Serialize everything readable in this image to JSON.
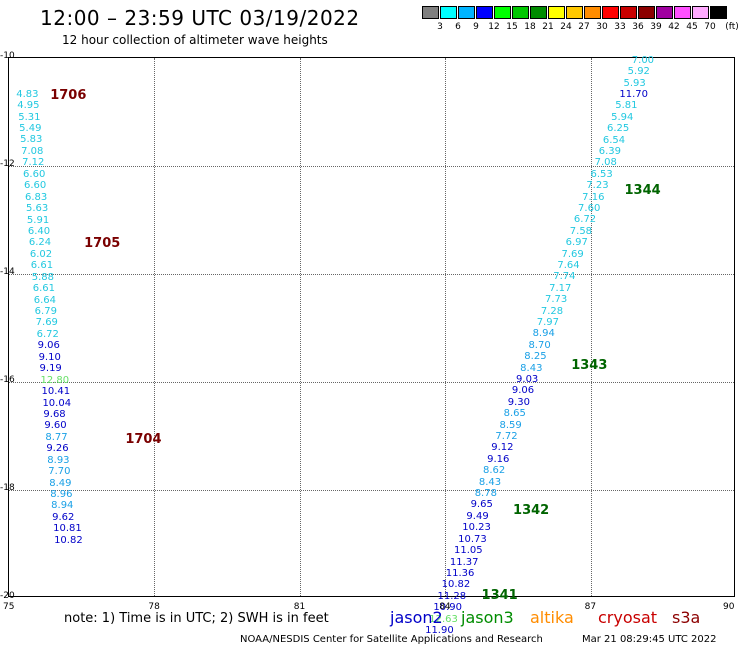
{
  "header": {
    "title": "12:00 – 23:59 UTC 03/19/2022",
    "subtitle": "12 hour collection of altimeter wave heights"
  },
  "colorbar": {
    "unit": "(ft)",
    "swatches": [
      {
        "color": "#7f7f7f",
        "label": "3"
      },
      {
        "color": "#00ffff",
        "label": "6"
      },
      {
        "color": "#00b4ff",
        "label": "9"
      },
      {
        "color": "#0000ff",
        "label": "12"
      },
      {
        "color": "#00ff00",
        "label": "15"
      },
      {
        "color": "#00c800",
        "label": "18"
      },
      {
        "color": "#008c00",
        "label": "21"
      },
      {
        "color": "#ffff00",
        "label": "24"
      },
      {
        "color": "#ffc800",
        "label": "27"
      },
      {
        "color": "#ff8c00",
        "label": "30"
      },
      {
        "color": "#ff0000",
        "label": "33"
      },
      {
        "color": "#c80000",
        "label": "36"
      },
      {
        "color": "#8c0000",
        "label": "39"
      },
      {
        "color": "#a000a0",
        "label": "42"
      },
      {
        "color": "#ff50ff",
        "label": "45"
      },
      {
        "color": "#ffaaff",
        "label": "70"
      },
      {
        "color": "#000000",
        "label": ""
      }
    ]
  },
  "map": {
    "lon_range": [
      75,
      90
    ],
    "lat_range": [
      -20,
      -10
    ],
    "lon_ticks": [
      "75",
      "78",
      "81",
      "84",
      "87",
      "90"
    ],
    "lat_ticks": [
      "-10",
      "-12",
      "-14",
      "-16",
      "-18",
      "-20"
    ],
    "grid": true
  },
  "passes": [
    {
      "label": "1706",
      "color": "#7a0000",
      "lon": 75.85,
      "lat": -10.68
    },
    {
      "label": "1705",
      "color": "#7a0000",
      "lon": 76.55,
      "lat": -13.42
    },
    {
      "label": "1704",
      "color": "#7a0000",
      "lon": 77.4,
      "lat": -17.05
    },
    {
      "label": "1344",
      "color": "#006400",
      "lon": 87.7,
      "lat": -12.45
    },
    {
      "label": "1343",
      "color": "#006400",
      "lon": 86.6,
      "lat": -15.68
    },
    {
      "label": "1342",
      "color": "#006400",
      "lon": 85.4,
      "lat": -18.37
    },
    {
      "label": "1341",
      "color": "#006400",
      "lon": 84.75,
      "lat": -19.95
    }
  ],
  "tracks": {
    "west": {
      "start_lon": 75.15,
      "lon_step": 0.02,
      "start_lat": -10.68,
      "lat_step": -0.2118,
      "obs": [
        {
          "v": "4.83",
          "c": "#22c8e0"
        },
        {
          "v": "4.95",
          "c": "#22c8e0"
        },
        {
          "v": "5.31",
          "c": "#22c8e0"
        },
        {
          "v": "5.49",
          "c": "#22c8e0"
        },
        {
          "v": "5.83",
          "c": "#22c8e0"
        },
        {
          "v": "7.08",
          "c": "#22c8e0"
        },
        {
          "v": "7.12",
          "c": "#22c8e0"
        },
        {
          "v": "6.60",
          "c": "#22c8e0"
        },
        {
          "v": "6.60",
          "c": "#22c8e0"
        },
        {
          "v": "6.83",
          "c": "#22c8e0"
        },
        {
          "v": "5.63",
          "c": "#22c8e0"
        },
        {
          "v": "5.91",
          "c": "#22c8e0"
        },
        {
          "v": "6.40",
          "c": "#22c8e0"
        },
        {
          "v": "6.24",
          "c": "#22c8e0"
        },
        {
          "v": "6.02",
          "c": "#22c8e0"
        },
        {
          "v": "6.61",
          "c": "#22c8e0"
        },
        {
          "v": "5.88",
          "c": "#22c8e0"
        },
        {
          "v": "6.61",
          "c": "#22c8e0"
        },
        {
          "v": "6.64",
          "c": "#22c8e0"
        },
        {
          "v": "6.79",
          "c": "#22c8e0"
        },
        {
          "v": "7.69",
          "c": "#22c8e0"
        },
        {
          "v": "6.72",
          "c": "#22c8e0"
        },
        {
          "v": "9.06",
          "c": "#0000c8"
        },
        {
          "v": "9.10",
          "c": "#0000c8"
        },
        {
          "v": "9.19",
          "c": "#0000c8"
        },
        {
          "v": "12.80",
          "c": "#66e066"
        },
        {
          "v": "10.41",
          "c": "#0000c8"
        },
        {
          "v": "10.04",
          "c": "#0000c8"
        },
        {
          "v": "9.68",
          "c": "#0000c8"
        },
        {
          "v": "9.60",
          "c": "#0000c8"
        },
        {
          "v": "8.77",
          "c": "#1aa0e6"
        },
        {
          "v": "9.26",
          "c": "#0000c8"
        },
        {
          "v": "8.93",
          "c": "#1aa0e6"
        },
        {
          "v": "7.70",
          "c": "#1aa0e6"
        },
        {
          "v": "8.49",
          "c": "#1aa0e6"
        },
        {
          "v": "8.96",
          "c": "#1aa0e6"
        },
        {
          "v": "8.94",
          "c": "#1aa0e6"
        },
        {
          "v": "9.62",
          "c": "#0000c8"
        },
        {
          "v": "10.81",
          "c": "#0000c8"
        },
        {
          "v": "10.82",
          "c": "#0000c8"
        }
      ]
    },
    "east": {
      "start_lon": 87.85,
      "lon_step": -0.0853,
      "start_lat": -10.05,
      "lat_step": -0.2112,
      "obs": [
        {
          "v": "7.00",
          "c": "#22c8e0"
        },
        {
          "v": "5.92",
          "c": "#22c8e0"
        },
        {
          "v": "5.93",
          "c": "#22c8e0"
        },
        {
          "v": "11.70",
          "c": "#0000c8"
        },
        {
          "v": "5.81",
          "c": "#22c8e0"
        },
        {
          "v": "5.94",
          "c": "#22c8e0"
        },
        {
          "v": "6.25",
          "c": "#22c8e0"
        },
        {
          "v": "6.54",
          "c": "#22c8e0"
        },
        {
          "v": "6.39",
          "c": "#22c8e0"
        },
        {
          "v": "7.08",
          "c": "#22c8e0"
        },
        {
          "v": "6.53",
          "c": "#22c8e0"
        },
        {
          "v": "7.23",
          "c": "#22c8e0"
        },
        {
          "v": "7.16",
          "c": "#22c8e0"
        },
        {
          "v": "7.60",
          "c": "#22c8e0"
        },
        {
          "v": "6.72",
          "c": "#22c8e0"
        },
        {
          "v": "7.58",
          "c": "#22c8e0"
        },
        {
          "v": "6.97",
          "c": "#22c8e0"
        },
        {
          "v": "7.69",
          "c": "#22c8e0"
        },
        {
          "v": "7.64",
          "c": "#22c8e0"
        },
        {
          "v": "7.74",
          "c": "#22c8e0"
        },
        {
          "v": "7.17",
          "c": "#22c8e0"
        },
        {
          "v": "7.73",
          "c": "#22c8e0"
        },
        {
          "v": "7.28",
          "c": "#22c8e0"
        },
        {
          "v": "7.97",
          "c": "#22c8e0"
        },
        {
          "v": "8.94",
          "c": "#1aa0e6"
        },
        {
          "v": "8.70",
          "c": "#1aa0e6"
        },
        {
          "v": "8.25",
          "c": "#1aa0e6"
        },
        {
          "v": "8.43",
          "c": "#1aa0e6"
        },
        {
          "v": "9.03",
          "c": "#0000c8"
        },
        {
          "v": "9.06",
          "c": "#0000c8"
        },
        {
          "v": "9.30",
          "c": "#0000c8"
        },
        {
          "v": "8.65",
          "c": "#1aa0e6"
        },
        {
          "v": "8.59",
          "c": "#1aa0e6"
        },
        {
          "v": "7.72",
          "c": "#1aa0e6"
        },
        {
          "v": "9.12",
          "c": "#0000c8"
        },
        {
          "v": "9.16",
          "c": "#0000c8"
        },
        {
          "v": "8.62",
          "c": "#1aa0e6"
        },
        {
          "v": "8.43",
          "c": "#1aa0e6"
        },
        {
          "v": "8.78",
          "c": "#1aa0e6"
        },
        {
          "v": "9.65",
          "c": "#0000c8"
        },
        {
          "v": "9.49",
          "c": "#0000c8"
        },
        {
          "v": "10.23",
          "c": "#0000c8"
        },
        {
          "v": "10.73",
          "c": "#0000c8"
        },
        {
          "v": "11.05",
          "c": "#0000c8"
        },
        {
          "v": "11.37",
          "c": "#0000c8"
        },
        {
          "v": "11.36",
          "c": "#0000c8"
        },
        {
          "v": "10.82",
          "c": "#0000c8"
        },
        {
          "v": "11.28",
          "c": "#0000c8"
        },
        {
          "v": "10.90",
          "c": "#0000c8"
        },
        {
          "v": "12.63",
          "c": "#66e066"
        },
        {
          "v": "11.90",
          "c": "#0000c8"
        }
      ]
    }
  },
  "footer": {
    "note": "note:  1) Time is in UTC;  2) SWH is in feet",
    "satellites": [
      {
        "name": "jason2",
        "color": "#0000c8"
      },
      {
        "name": "jason3",
        "color": "#008c00"
      },
      {
        "name": "altika",
        "color": "#ff8c00"
      },
      {
        "name": "cryosat",
        "color": "#c80000"
      },
      {
        "name": "s3a",
        "color": "#8c0000"
      }
    ],
    "credit": "NOAA/NESDIS Center for Satellite Applications and Research",
    "timestamp": "Mar 21 08:29:45 UTC 2022"
  }
}
